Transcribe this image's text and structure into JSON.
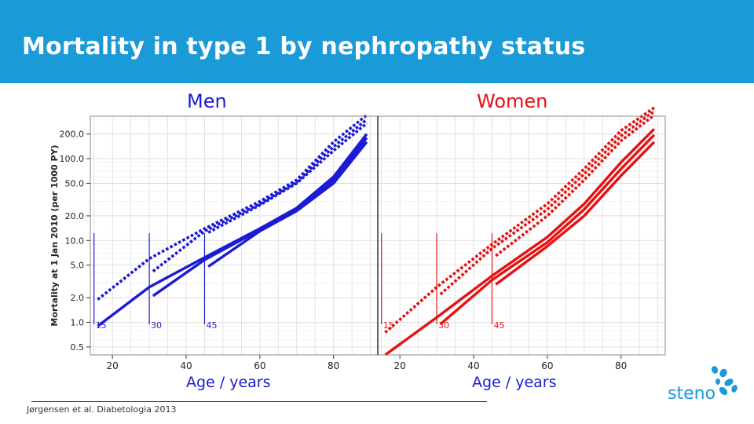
{
  "header": {
    "title": "Mortality in type 1 by nephropathy status"
  },
  "colors": {
    "header_bg": "#1a9ad6",
    "men": "#1b1bd6",
    "women": "#e81010",
    "logo": "#1a9ad6"
  },
  "logo": {
    "text": "steno"
  },
  "citation": "Jørgensen et al. Diabetologia 2013",
  "chart_data": {
    "type": "line",
    "ylabel": "Mortality at 1 Jan 2010 (per 1000 PY)",
    "y_scale": "log",
    "ylim": [
      0.4,
      330
    ],
    "xlim": [
      14,
      92
    ],
    "y_ticks": [
      0.5,
      1.0,
      2.0,
      5.0,
      10.0,
      20.0,
      50.0,
      100.0,
      200.0
    ],
    "y_tick_labels": [
      "0.5",
      "1.0",
      "2.0",
      "5.0",
      "10.0",
      "20.0",
      "50.0",
      "100.0",
      "200.0"
    ],
    "x_ticks": [
      20,
      40,
      60,
      80
    ],
    "x_tick_labels": [
      "20",
      "40",
      "60",
      "80"
    ],
    "grid": true,
    "panels": [
      {
        "title": "Men",
        "xlabel": "Age / years",
        "color": "#1b1bd6",
        "onset_markers": [
          {
            "label": "15",
            "age": 15
          },
          {
            "label": "30",
            "age": 30
          },
          {
            "label": "45",
            "age": 45
          }
        ],
        "series": [
          {
            "style": "solid",
            "onset": 15,
            "x": [
              16,
              30,
              45,
              60,
              70,
              80,
              89
            ],
            "y": [
              0.9,
              2.7,
              6.2,
              14,
              25,
              60,
              200
            ]
          },
          {
            "style": "solid",
            "onset": 30,
            "x": [
              31,
              45,
              60,
              70,
              80,
              89
            ],
            "y": [
              2.1,
              5.8,
              13.5,
              24,
              55,
              180
            ]
          },
          {
            "style": "solid",
            "onset": 45,
            "x": [
              46,
              60,
              70,
              80,
              89
            ],
            "y": [
              4.8,
              13,
              23,
              50,
              160
            ]
          },
          {
            "style": "dotted",
            "onset": 15,
            "x": [
              16,
              30,
              45,
              60,
              70,
              80,
              89
            ],
            "y": [
              1.9,
              6,
              14,
              30,
              55,
              160,
              340
            ]
          },
          {
            "style": "dotted",
            "onset": 30,
            "x": [
              31,
              45,
              60,
              70,
              80,
              89
            ],
            "y": [
              4.2,
              13,
              28,
              52,
              140,
              300
            ]
          },
          {
            "style": "dotted",
            "onset": 45,
            "x": [
              46,
              60,
              70,
              80,
              89
            ],
            "y": [
              12.5,
              27,
              50,
              125,
              270
            ]
          }
        ]
      },
      {
        "title": "Women",
        "xlabel": "Age / years",
        "color": "#e81010",
        "onset_markers": [
          {
            "label": "15",
            "age": 15
          },
          {
            "label": "30",
            "age": 30
          },
          {
            "label": "45",
            "age": 45
          }
        ],
        "series": [
          {
            "style": "solid",
            "onset": 15,
            "x": [
              16,
              30,
              45,
              60,
              70,
              80,
              89
            ],
            "y": [
              0.4,
              1.15,
              3.7,
              11,
              28,
              90,
              230
            ]
          },
          {
            "style": "solid",
            "onset": 30,
            "x": [
              31,
              45,
              60,
              70,
              80,
              89
            ],
            "y": [
              0.95,
              3.3,
              9.5,
              24,
              75,
              195
            ]
          },
          {
            "style": "solid",
            "onset": 45,
            "x": [
              46,
              60,
              70,
              80,
              89
            ],
            "y": [
              2.9,
              8.5,
              20,
              62,
              160
            ]
          },
          {
            "style": "dotted",
            "onset": 15,
            "x": [
              16,
              30,
              45,
              60,
              70,
              80,
              89
            ],
            "y": [
              0.75,
              2.7,
              9,
              28,
              75,
              220,
              420
            ]
          },
          {
            "style": "dotted",
            "onset": 30,
            "x": [
              31,
              45,
              60,
              70,
              80,
              89
            ],
            "y": [
              2.2,
              8,
              24,
              65,
              190,
              380
            ]
          },
          {
            "style": "dotted",
            "onset": 45,
            "x": [
              46,
              60,
              70,
              80,
              89
            ],
            "y": [
              6.5,
              20,
              55,
              165,
              340
            ]
          }
        ]
      }
    ]
  }
}
